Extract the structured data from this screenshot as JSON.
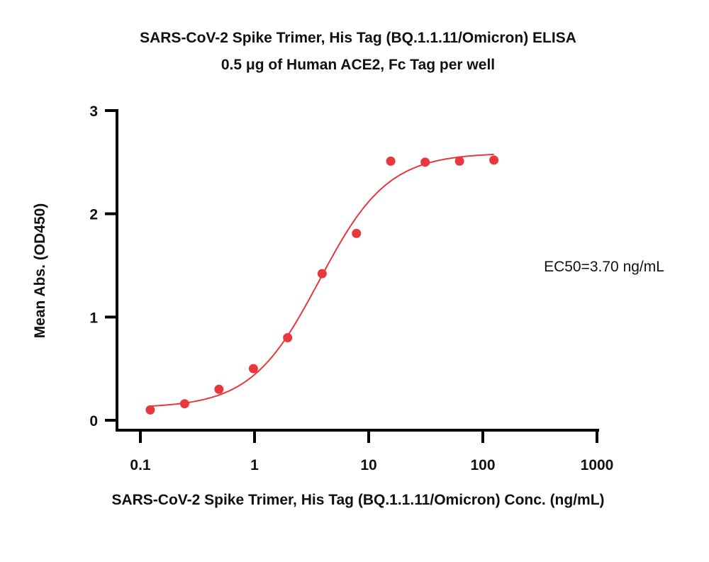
{
  "chart_data": {
    "type": "scatter",
    "title": "SARS-CoV-2 Spike Trimer, His Tag (BQ.1.1.11/Omicron) ELISA",
    "subtitle": "0.5 μg of Human ACE2, Fc Tag per well",
    "xlabel": "SARS-CoV-2 Spike Trimer, His Tag (BQ.1.1.11/Omicron) Conc. (ng/mL)",
    "ylabel": "Mean Abs. (OD450)",
    "xscale": "log",
    "xlim": [
      0.1,
      1000
    ],
    "ylim": [
      0,
      3
    ],
    "xticks": [
      0.1,
      1,
      10,
      100,
      1000
    ],
    "xtick_labels": [
      "0.1",
      "1",
      "10",
      "100",
      "1000"
    ],
    "yticks": [
      0,
      1,
      2,
      3
    ],
    "ytick_labels": [
      "0",
      "1",
      "2",
      "3"
    ],
    "grid": false,
    "annotation": "EC50=3.70 ng/mL",
    "color": "#e8373d",
    "points": {
      "x": [
        0.122,
        0.244,
        0.488,
        0.977,
        1.95,
        3.91,
        7.81,
        15.6,
        31.25,
        62.5,
        125
      ],
      "y": [
        0.1,
        0.16,
        0.3,
        0.5,
        0.8,
        1.42,
        1.81,
        2.51,
        2.5,
        2.51,
        2.52
      ]
    },
    "fit": {
      "model": "4PL",
      "bottom": 0.12,
      "top": 2.59,
      "ec50": 3.7,
      "hill": 1.45
    }
  }
}
